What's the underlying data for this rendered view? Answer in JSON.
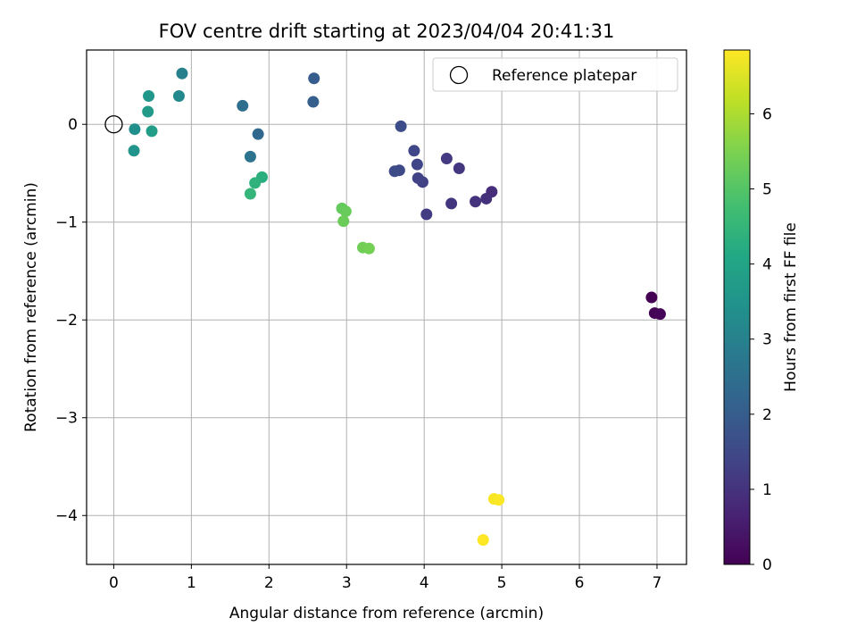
{
  "chart_data": {
    "type": "scatter",
    "title": "FOV centre drift starting at 2023/04/04 20:41:31",
    "xlabel": "Angular distance from reference (arcmin)",
    "ylabel": "Rotation from reference (arcmin)",
    "xlim": [
      -0.35,
      7.38
    ],
    "ylim": [
      -4.5,
      0.76
    ],
    "xticks": [
      0,
      1,
      2,
      3,
      4,
      5,
      6,
      7
    ],
    "yticks": [
      0,
      -1,
      -2,
      -3,
      -4
    ],
    "grid": true,
    "legend": {
      "label": "Reference platepar",
      "placement": "top-right"
    },
    "reference_point": {
      "x": 0,
      "y": 0
    },
    "colorbar": {
      "label": "Hours from first FF file",
      "colormap": "viridis",
      "range": [
        0,
        6.85
      ],
      "ticks": [
        0,
        1,
        2,
        3,
        4,
        5,
        6
      ]
    },
    "points": [
      {
        "x": 6.93,
        "y": -1.77,
        "hours": 0.0
      },
      {
        "x": 6.97,
        "y": -1.93,
        "hours": 0.05
      },
      {
        "x": 7.04,
        "y": -1.94,
        "hours": 0.1
      },
      {
        "x": 4.87,
        "y": -0.69,
        "hours": 0.9
      },
      {
        "x": 4.8,
        "y": -0.76,
        "hours": 0.95
      },
      {
        "x": 4.66,
        "y": -0.79,
        "hours": 1.0
      },
      {
        "x": 4.35,
        "y": -0.81,
        "hours": 1.05
      },
      {
        "x": 4.45,
        "y": -0.45,
        "hours": 1.1
      },
      {
        "x": 4.29,
        "y": -0.35,
        "hours": 1.15
      },
      {
        "x": 4.03,
        "y": -0.92,
        "hours": 1.2
      },
      {
        "x": 3.98,
        "y": -0.59,
        "hours": 1.3
      },
      {
        "x": 3.92,
        "y": -0.55,
        "hours": 1.35
      },
      {
        "x": 3.91,
        "y": -0.41,
        "hours": 1.4
      },
      {
        "x": 3.87,
        "y": -0.27,
        "hours": 1.45
      },
      {
        "x": 3.68,
        "y": -0.47,
        "hours": 1.5
      },
      {
        "x": 3.62,
        "y": -0.48,
        "hours": 1.55
      },
      {
        "x": 3.7,
        "y": -0.02,
        "hours": 1.6
      },
      {
        "x": 2.58,
        "y": 0.47,
        "hours": 2.0
      },
      {
        "x": 2.57,
        "y": 0.23,
        "hours": 2.05
      },
      {
        "x": 1.86,
        "y": -0.1,
        "hours": 2.3
      },
      {
        "x": 1.66,
        "y": 0.19,
        "hours": 2.5
      },
      {
        "x": 1.76,
        "y": -0.33,
        "hours": 2.6
      },
      {
        "x": 0.88,
        "y": 0.52,
        "hours": 3.0
      },
      {
        "x": 0.84,
        "y": 0.29,
        "hours": 3.2
      },
      {
        "x": 0.27,
        "y": -0.05,
        "hours": 3.4
      },
      {
        "x": 0.26,
        "y": -0.27,
        "hours": 3.5
      },
      {
        "x": 0.45,
        "y": 0.29,
        "hours": 3.6
      },
      {
        "x": 0.44,
        "y": 0.13,
        "hours": 3.7
      },
      {
        "x": 0.49,
        "y": -0.07,
        "hours": 3.8
      },
      {
        "x": 1.91,
        "y": -0.54,
        "hours": 4.3
      },
      {
        "x": 1.82,
        "y": -0.6,
        "hours": 4.4
      },
      {
        "x": 1.76,
        "y": -0.71,
        "hours": 4.5
      },
      {
        "x": 2.94,
        "y": -0.86,
        "hours": 5.2
      },
      {
        "x": 2.99,
        "y": -0.89,
        "hours": 5.25
      },
      {
        "x": 2.96,
        "y": -0.99,
        "hours": 5.3
      },
      {
        "x": 3.21,
        "y": -1.26,
        "hours": 5.35
      },
      {
        "x": 3.29,
        "y": -1.27,
        "hours": 5.4
      },
      {
        "x": 4.9,
        "y": -3.83,
        "hours": 6.8
      },
      {
        "x": 4.96,
        "y": -3.84,
        "hours": 6.82
      },
      {
        "x": 4.76,
        "y": -4.25,
        "hours": 6.85
      }
    ]
  }
}
